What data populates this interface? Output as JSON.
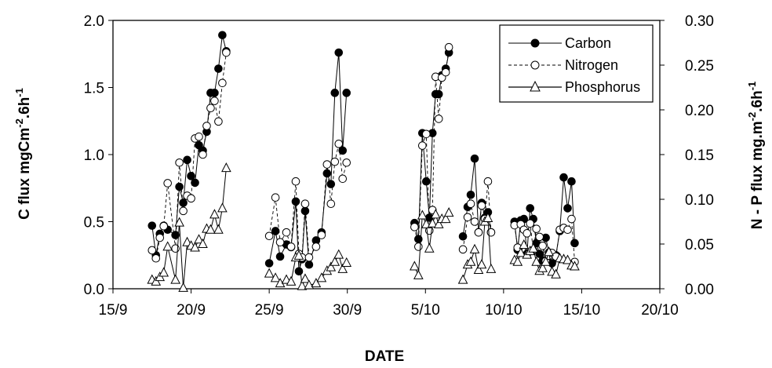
{
  "chart_data": {
    "type": "scatter",
    "xlabel": "DATE",
    "ylabel_left": "C flux mgCm",
    "ylabel_left_sup": "-2",
    "ylabel_left_mid": ".6h",
    "ylabel_left_sup2": "-1",
    "ylabel_right": "N - P flux mg.m",
    "ylabel_right_sup": "-2",
    "ylabel_right_mid": ".6h",
    "ylabel_right_sup2": "-1",
    "x_ticks": [
      {
        "value": 0,
        "label": "15/9"
      },
      {
        "value": 5,
        "label": "20/9"
      },
      {
        "value": 10,
        "label": "25/9"
      },
      {
        "value": 15,
        "label": "30/9"
      },
      {
        "value": 20,
        "label": "5/10"
      },
      {
        "value": 25,
        "label": "10/10"
      },
      {
        "value": 30,
        "label": "15/10"
      },
      {
        "value": 35,
        "label": "20/10"
      }
    ],
    "xlim": [
      0,
      35
    ],
    "ylim_left": [
      0,
      2.0
    ],
    "y_ticks_left": [
      "0.0",
      "0.5",
      "1.0",
      "1.5",
      "2.0"
    ],
    "ylim_right": [
      0,
      0.3
    ],
    "y_ticks_right": [
      "0.00",
      "0.05",
      "0.10",
      "0.15",
      "0.20",
      "0.25",
      "0.30"
    ],
    "legend_position": "top-right",
    "series": [
      {
        "name": "Carbon",
        "axis": "left",
        "marker": "filled-circle",
        "line": "solid",
        "segments": [
          [
            [
              2.5,
              0.47
            ],
            [
              2.75,
              0.25
            ],
            [
              3.0,
              0.41
            ],
            [
              3.25,
              0.47
            ],
            [
              3.5,
              0.44
            ],
            [
              4.0,
              0.4
            ],
            [
              4.25,
              0.76
            ],
            [
              4.5,
              0.64
            ],
            [
              4.75,
              0.96
            ],
            [
              5.0,
              0.84
            ],
            [
              5.25,
              0.79
            ],
            [
              5.5,
              1.07
            ],
            [
              5.75,
              1.03
            ],
            [
              6.0,
              1.17
            ],
            [
              6.25,
              1.46
            ],
            [
              6.5,
              1.46
            ],
            [
              6.75,
              1.64
            ],
            [
              7.0,
              1.89
            ],
            [
              7.25,
              1.77
            ]
          ],
          [
            [
              10.0,
              0.19
            ],
            [
              10.4,
              0.43
            ],
            [
              10.7,
              0.24
            ],
            [
              11.1,
              0.33
            ],
            [
              11.4,
              0.31
            ],
            [
              11.7,
              0.65
            ],
            [
              11.9,
              0.13
            ],
            [
              12.1,
              0.22
            ],
            [
              12.3,
              0.58
            ],
            [
              12.55,
              0.18
            ],
            [
              13.0,
              0.36
            ],
            [
              13.35,
              0.42
            ],
            [
              13.7,
              0.86
            ],
            [
              13.95,
              0.78
            ],
            [
              14.2,
              1.46
            ],
            [
              14.45,
              1.76
            ],
            [
              14.7,
              1.03
            ],
            [
              14.95,
              1.46
            ]
          ],
          [
            [
              19.3,
              0.49
            ],
            [
              19.55,
              0.37
            ],
            [
              19.8,
              1.16
            ],
            [
              20.05,
              0.8
            ],
            [
              20.25,
              0.53
            ],
            [
              20.45,
              1.16
            ],
            [
              20.65,
              1.45
            ],
            [
              20.85,
              1.45
            ],
            [
              21.05,
              1.59
            ],
            [
              21.3,
              1.64
            ],
            [
              21.5,
              1.76
            ]
          ],
          [
            [
              22.4,
              0.39
            ],
            [
              22.7,
              0.61
            ],
            [
              22.9,
              0.7
            ],
            [
              23.15,
              0.97
            ],
            [
              23.4,
              0.42
            ],
            [
              23.6,
              0.64
            ],
            [
              23.8,
              0.53
            ],
            [
              24.0,
              0.57
            ],
            [
              24.2,
              0.42
            ]
          ],
          [
            [
              25.7,
              0.5
            ],
            [
              25.9,
              0.29
            ],
            [
              26.1,
              0.51
            ],
            [
              26.3,
              0.52
            ],
            [
              26.5,
              0.26
            ],
            [
              26.7,
              0.6
            ],
            [
              26.9,
              0.52
            ],
            [
              27.1,
              0.34
            ],
            [
              27.3,
              0.26
            ],
            [
              27.5,
              0.21
            ],
            [
              27.7,
              0.38
            ],
            [
              27.9,
              0.27
            ],
            [
              28.1,
              0.19
            ],
            [
              28.35,
              0.25
            ],
            [
              28.6,
              0.43
            ],
            [
              28.85,
              0.83
            ],
            [
              29.1,
              0.6
            ],
            [
              29.35,
              0.8
            ],
            [
              29.55,
              0.34
            ]
          ]
        ]
      },
      {
        "name": "Nitrogen",
        "axis": "right",
        "marker": "open-circle",
        "line": "dashed",
        "segments": [
          [
            [
              2.5,
              0.043
            ],
            [
              2.75,
              0.034
            ],
            [
              3.0,
              0.057
            ],
            [
              3.25,
              0.07
            ],
            [
              3.5,
              0.118
            ],
            [
              4.0,
              0.045
            ],
            [
              4.25,
              0.141
            ],
            [
              4.5,
              0.087
            ],
            [
              4.75,
              0.104
            ],
            [
              5.0,
              0.101
            ],
            [
              5.25,
              0.168
            ],
            [
              5.5,
              0.17
            ],
            [
              5.75,
              0.15
            ],
            [
              6.0,
              0.182
            ],
            [
              6.25,
              0.202
            ],
            [
              6.5,
              0.21
            ],
            [
              6.75,
              0.187
            ],
            [
              7.0,
              0.23
            ],
            [
              7.25,
              0.264
            ]
          ],
          [
            [
              10.0,
              0.059
            ],
            [
              10.4,
              0.102
            ],
            [
              10.7,
              0.052
            ],
            [
              11.1,
              0.063
            ],
            [
              11.4,
              0.047
            ],
            [
              11.7,
              0.12
            ],
            [
              11.9,
              0.039
            ],
            [
              12.1,
              0.035
            ],
            [
              12.3,
              0.095
            ],
            [
              12.55,
              0.035
            ],
            [
              13.0,
              0.047
            ],
            [
              13.35,
              0.06
            ],
            [
              13.7,
              0.139
            ],
            [
              13.95,
              0.095
            ],
            [
              14.2,
              0.142
            ],
            [
              14.45,
              0.162
            ],
            [
              14.7,
              0.123
            ],
            [
              14.95,
              0.141
            ]
          ],
          [
            [
              19.3,
              0.069
            ],
            [
              19.55,
              0.047
            ],
            [
              19.8,
              0.16
            ],
            [
              20.05,
              0.173
            ],
            [
              20.25,
              0.065
            ],
            [
              20.45,
              0.088
            ],
            [
              20.65,
              0.237
            ],
            [
              20.85,
              0.19
            ],
            [
              21.05,
              0.236
            ],
            [
              21.3,
              0.242
            ],
            [
              21.5,
              0.27
            ]
          ],
          [
            [
              22.4,
              0.044
            ],
            [
              22.7,
              0.08
            ],
            [
              22.9,
              0.095
            ],
            [
              23.15,
              0.075
            ],
            [
              23.4,
              0.063
            ],
            [
              23.6,
              0.093
            ],
            [
              23.8,
              0.078
            ],
            [
              24.0,
              0.12
            ],
            [
              24.2,
              0.063
            ]
          ],
          [
            [
              25.7,
              0.071
            ],
            [
              25.9,
              0.046
            ],
            [
              26.1,
              0.072
            ],
            [
              26.3,
              0.066
            ],
            [
              26.5,
              0.062
            ],
            [
              26.7,
              0.073
            ],
            [
              26.9,
              0.043
            ],
            [
              27.1,
              0.067
            ],
            [
              27.3,
              0.058
            ],
            [
              27.5,
              0.048
            ],
            [
              27.7,
              0.031
            ],
            [
              27.9,
              0.037
            ],
            [
              28.1,
              0.04
            ],
            [
              28.35,
              0.036
            ],
            [
              28.6,
              0.066
            ],
            [
              28.85,
              0.068
            ],
            [
              29.1,
              0.066
            ],
            [
              29.35,
              0.078
            ],
            [
              29.55,
              0.03
            ]
          ]
        ]
      },
      {
        "name": "Phosphorus",
        "axis": "right",
        "marker": "open-triangle",
        "line": "solid",
        "segments": [
          [
            [
              2.5,
              0.01
            ],
            [
              2.75,
              0.008
            ],
            [
              3.0,
              0.013
            ],
            [
              3.25,
              0.018
            ],
            [
              3.5,
              0.047
            ],
            [
              4.0,
              0.01
            ],
            [
              4.25,
              0.074
            ],
            [
              4.5,
              0.001
            ],
            [
              4.75,
              0.052
            ],
            [
              5.0,
              0.048
            ],
            [
              5.25,
              0.046
            ],
            [
              5.5,
              0.055
            ],
            [
              5.75,
              0.05
            ],
            [
              6.0,
              0.067
            ],
            [
              6.25,
              0.066
            ],
            [
              6.5,
              0.083
            ],
            [
              6.75,
              0.066
            ],
            [
              7.0,
              0.09
            ],
            [
              7.25,
              0.135
            ]
          ],
          [
            [
              10.0,
              0.017
            ],
            [
              10.4,
              0.012
            ],
            [
              10.7,
              0.006
            ],
            [
              11.1,
              0.01
            ],
            [
              11.4,
              0.008
            ],
            [
              11.7,
              0.035
            ],
            [
              11.9,
              0.037
            ],
            [
              12.1,
              0.003
            ],
            [
              12.3,
              0.011
            ],
            [
              12.55,
              0.004
            ],
            [
              13.0,
              0.006
            ],
            [
              13.35,
              0.012
            ],
            [
              13.7,
              0.02
            ],
            [
              13.95,
              0.024
            ],
            [
              14.2,
              0.03
            ],
            [
              14.45,
              0.038
            ],
            [
              14.7,
              0.022
            ],
            [
              14.95,
              0.029
            ]
          ],
          [
            [
              19.3,
              0.025
            ],
            [
              19.55,
              0.015
            ],
            [
              19.8,
              0.082
            ],
            [
              20.05,
              0.072
            ],
            [
              20.25,
              0.045
            ],
            [
              20.45,
              0.073
            ],
            [
              20.65,
              0.083
            ],
            [
              20.85,
              0.072
            ],
            [
              21.05,
              0.078
            ],
            [
              21.3,
              0.078
            ],
            [
              21.5,
              0.085
            ]
          ],
          [
            [
              22.4,
              0.01
            ],
            [
              22.7,
              0.027
            ],
            [
              22.9,
              0.03
            ],
            [
              23.15,
              0.044
            ],
            [
              23.4,
              0.021
            ],
            [
              23.6,
              0.027
            ],
            [
              23.8,
              0.075
            ],
            [
              24.0,
              0.079
            ],
            [
              24.2,
              0.022
            ]
          ],
          [
            [
              25.7,
              0.032
            ],
            [
              25.9,
              0.03
            ],
            [
              26.1,
              0.04
            ],
            [
              26.3,
              0.049
            ],
            [
              26.5,
              0.038
            ],
            [
              26.7,
              0.042
            ],
            [
              26.9,
              0.045
            ],
            [
              27.1,
              0.03
            ],
            [
              27.3,
              0.02
            ],
            [
              27.5,
              0.023
            ],
            [
              27.7,
              0.03
            ],
            [
              27.9,
              0.041
            ],
            [
              28.1,
              0.019
            ],
            [
              28.35,
              0.016
            ],
            [
              28.6,
              0.034
            ],
            [
              28.85,
              0.033
            ],
            [
              29.1,
              0.032
            ],
            [
              29.35,
              0.026
            ],
            [
              29.55,
              0.025
            ]
          ]
        ]
      }
    ]
  }
}
